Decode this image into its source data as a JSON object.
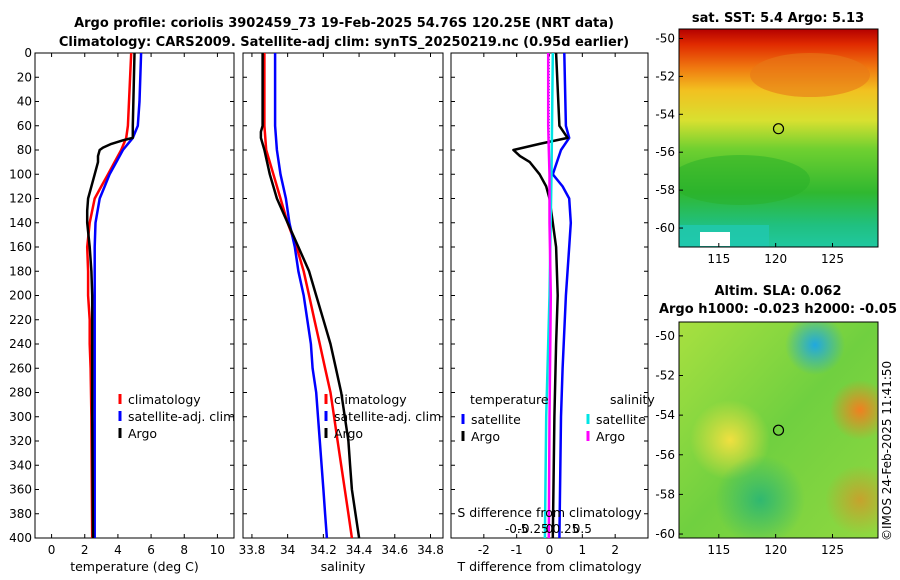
{
  "title_line1": "Argo profile: coriolis 3902459_73 19-Feb-2025 54.76S 120.25E (NRT data)",
  "title_line2": "Climatology: CARS2009. Satellite-adj clim: synTS_20250219.nc (0.95d earlier)",
  "watermark": "©IMOS 24-Feb-2025 11:41:50",
  "colors": {
    "climatology": "#ff0000",
    "satellite": "#0000ff",
    "argo": "#000000",
    "sat_salinity": "#00e5e5",
    "argo_salinity": "#ff00ff"
  },
  "chart_data": [
    {
      "type": "line",
      "name": "temperature",
      "xlabel": "temperature (deg C)",
      "xlim": [
        -1,
        11
      ],
      "xticks": [
        0,
        2,
        4,
        6,
        8,
        10
      ],
      "xtick_labels": [
        "0",
        "2",
        "4",
        "6",
        "8",
        "10"
      ],
      "ylim": [
        0,
        400
      ],
      "yticks": [
        0,
        20,
        40,
        60,
        80,
        100,
        120,
        140,
        160,
        180,
        200,
        220,
        240,
        260,
        280,
        300,
        320,
        340,
        360,
        380,
        400
      ],
      "legend": [
        "climatology",
        "satellite-adj. clim",
        "Argo"
      ],
      "series": [
        {
          "name": "climatology",
          "depth": [
            0,
            60,
            70,
            80,
            90,
            100,
            110,
            120,
            140,
            160,
            180,
            200,
            220,
            240,
            260,
            300,
            400
          ],
          "values": [
            4.8,
            4.6,
            4.5,
            4.2,
            3.8,
            3.4,
            3.0,
            2.6,
            2.3,
            2.15,
            2.2,
            2.2,
            2.3,
            2.3,
            2.35,
            2.4,
            2.45
          ]
        },
        {
          "name": "satellite-adj. clim",
          "depth": [
            0,
            40,
            60,
            70,
            80,
            90,
            100,
            110,
            120,
            140,
            160,
            180,
            200,
            240,
            300,
            400
          ],
          "values": [
            5.4,
            5.3,
            5.2,
            4.9,
            4.3,
            3.9,
            3.5,
            3.2,
            2.9,
            2.65,
            2.6,
            2.6,
            2.6,
            2.6,
            2.6,
            2.6
          ]
        },
        {
          "name": "Argo",
          "depth": [
            0,
            60,
            70,
            72,
            75,
            78,
            80,
            85,
            90,
            100,
            110,
            120,
            130,
            140,
            160,
            180,
            200,
            240,
            300,
            400
          ],
          "values": [
            5.0,
            4.9,
            4.9,
            4.3,
            3.6,
            3.1,
            2.9,
            2.8,
            2.8,
            2.6,
            2.4,
            2.2,
            2.15,
            2.15,
            2.3,
            2.4,
            2.45,
            2.45,
            2.45,
            2.5
          ]
        }
      ]
    },
    {
      "type": "line",
      "name": "salinity",
      "xlabel": "salinity",
      "xlim": [
        33.75,
        34.87
      ],
      "xticks": [
        33.8,
        34,
        34.2,
        34.4,
        34.6,
        34.8
      ],
      "xtick_labels": [
        "33.8",
        "34",
        "34.2",
        "34.4",
        "34.6",
        "34.8"
      ],
      "ylim": [
        0,
        400
      ],
      "yticks": [
        0,
        20,
        40,
        60,
        80,
        100,
        120,
        140,
        160,
        180,
        200,
        220,
        240,
        260,
        280,
        300,
        320,
        340,
        360,
        380,
        400
      ],
      "legend": [
        "climatology",
        "satellite-adj. clim",
        "Argo"
      ],
      "series": [
        {
          "name": "climatology",
          "depth": [
            0,
            60,
            80,
            100,
            120,
            140,
            160,
            180,
            200,
            220,
            240,
            260,
            280,
            300,
            320,
            340,
            360,
            380,
            400
          ],
          "values": [
            33.87,
            33.87,
            33.88,
            33.92,
            33.96,
            34.0,
            34.05,
            34.09,
            34.12,
            34.15,
            34.18,
            34.21,
            34.24,
            34.26,
            34.28,
            34.3,
            34.32,
            34.34,
            34.36
          ]
        },
        {
          "name": "satellite-adj. clim",
          "depth": [
            0,
            60,
            80,
            100,
            120,
            140,
            160,
            180,
            200,
            220,
            240,
            260,
            280,
            300,
            320,
            340,
            360,
            380,
            400
          ],
          "values": [
            33.93,
            33.93,
            33.94,
            33.96,
            33.99,
            34.01,
            34.04,
            34.06,
            34.09,
            34.11,
            34.13,
            34.14,
            34.16,
            34.17,
            34.18,
            34.19,
            34.2,
            34.21,
            34.22
          ]
        },
        {
          "name": "Argo",
          "depth": [
            0,
            60,
            65,
            70,
            80,
            100,
            120,
            140,
            160,
            180,
            200,
            220,
            240,
            260,
            280,
            300,
            320,
            340,
            360,
            380,
            400
          ],
          "values": [
            33.86,
            33.86,
            33.85,
            33.85,
            33.87,
            33.9,
            33.94,
            34.0,
            34.06,
            34.12,
            34.16,
            34.2,
            34.24,
            34.27,
            34.3,
            34.32,
            34.34,
            34.35,
            34.36,
            34.38,
            34.4
          ]
        }
      ]
    },
    {
      "type": "line",
      "name": "differences",
      "xlabel": "T difference from climatology",
      "xlim": [
        -3,
        3
      ],
      "xticks": [
        -2,
        -1,
        0,
        1,
        2
      ],
      "xtick_labels": [
        "-2",
        "-1",
        "0",
        "1",
        "2"
      ],
      "top_xlabel": "S difference from climatology",
      "top_xticks": [
        -0.5,
        -0.25,
        0,
        0.25,
        0.5
      ],
      "top_xtick_labels": [
        "-0.5",
        "-0.25",
        "0",
        "0.25",
        "0.5"
      ],
      "ylim": [
        0,
        400
      ],
      "legend_temperature_heading": "temperature",
      "legend_salinity_heading": "salinity",
      "legend": [
        "satellite",
        "Argo",
        "satellite",
        "Argo"
      ],
      "series": [
        {
          "name": "temperature satellite",
          "depth": [
            0,
            60,
            70,
            80,
            100,
            110,
            120,
            140,
            160,
            200,
            260,
            300,
            400
          ],
          "values": [
            0.45,
            0.5,
            0.6,
            0.35,
            0.1,
            0.4,
            0.6,
            0.65,
            0.6,
            0.5,
            0.4,
            0.35,
            0.3
          ]
        },
        {
          "name": "temperature Argo",
          "depth": [
            0,
            60,
            70,
            75,
            80,
            85,
            90,
            100,
            110,
            120,
            140,
            160,
            200,
            240,
            300,
            400
          ],
          "values": [
            0.2,
            0.3,
            0.55,
            -0.3,
            -1.1,
            -0.9,
            -0.6,
            -0.3,
            -0.1,
            0.0,
            0.1,
            0.2,
            0.25,
            0.2,
            0.15,
            0.1
          ]
        },
        {
          "name": "salinity satellite",
          "depth": [
            0,
            100,
            200,
            300,
            400
          ],
          "values": [
            0.05,
            0.03,
            0.0,
            -0.05,
            -0.07
          ]
        },
        {
          "name": "salinity Argo",
          "depth": [
            0,
            60,
            80,
            100,
            140,
            200,
            300,
            400
          ],
          "values": [
            -0.02,
            -0.02,
            -0.01,
            0.0,
            0.0,
            0.02,
            0.0,
            -0.01
          ]
        }
      ]
    },
    {
      "type": "heatmap",
      "name": "sst_map",
      "title": "sat. SST: 5.4 Argo: 5.13",
      "xticks": [
        115,
        120,
        125
      ],
      "xtick_labels": [
        "115",
        "120",
        "125"
      ],
      "yticks": [
        -50,
        -52,
        -54,
        -56,
        -58,
        -60
      ],
      "ytick_labels": [
        "-50",
        "-52",
        "-54",
        "-56",
        "-58",
        "-60"
      ],
      "xlim": [
        111.5,
        129
      ],
      "ylim": [
        -61,
        -49.5
      ],
      "marker": {
        "lon": 120.25,
        "lat": -54.76
      }
    },
    {
      "type": "heatmap",
      "name": "sla_map",
      "title_line1": "Altim. SLA: 0.062",
      "title_line2": "Argo h1000: -0.023 h2000: -0.05",
      "xticks": [
        115,
        120,
        125
      ],
      "xtick_labels": [
        "115",
        "120",
        "125"
      ],
      "yticks": [
        -50,
        -52,
        -54,
        -56,
        -58,
        -60
      ],
      "ytick_labels": [
        "-50",
        "-52",
        "-54",
        "-56",
        "-58",
        "-60"
      ],
      "xlim": [
        111.5,
        129
      ],
      "ylim": [
        -60.2,
        -49.3
      ],
      "marker": {
        "lon": 120.25,
        "lat": -54.76
      }
    }
  ]
}
